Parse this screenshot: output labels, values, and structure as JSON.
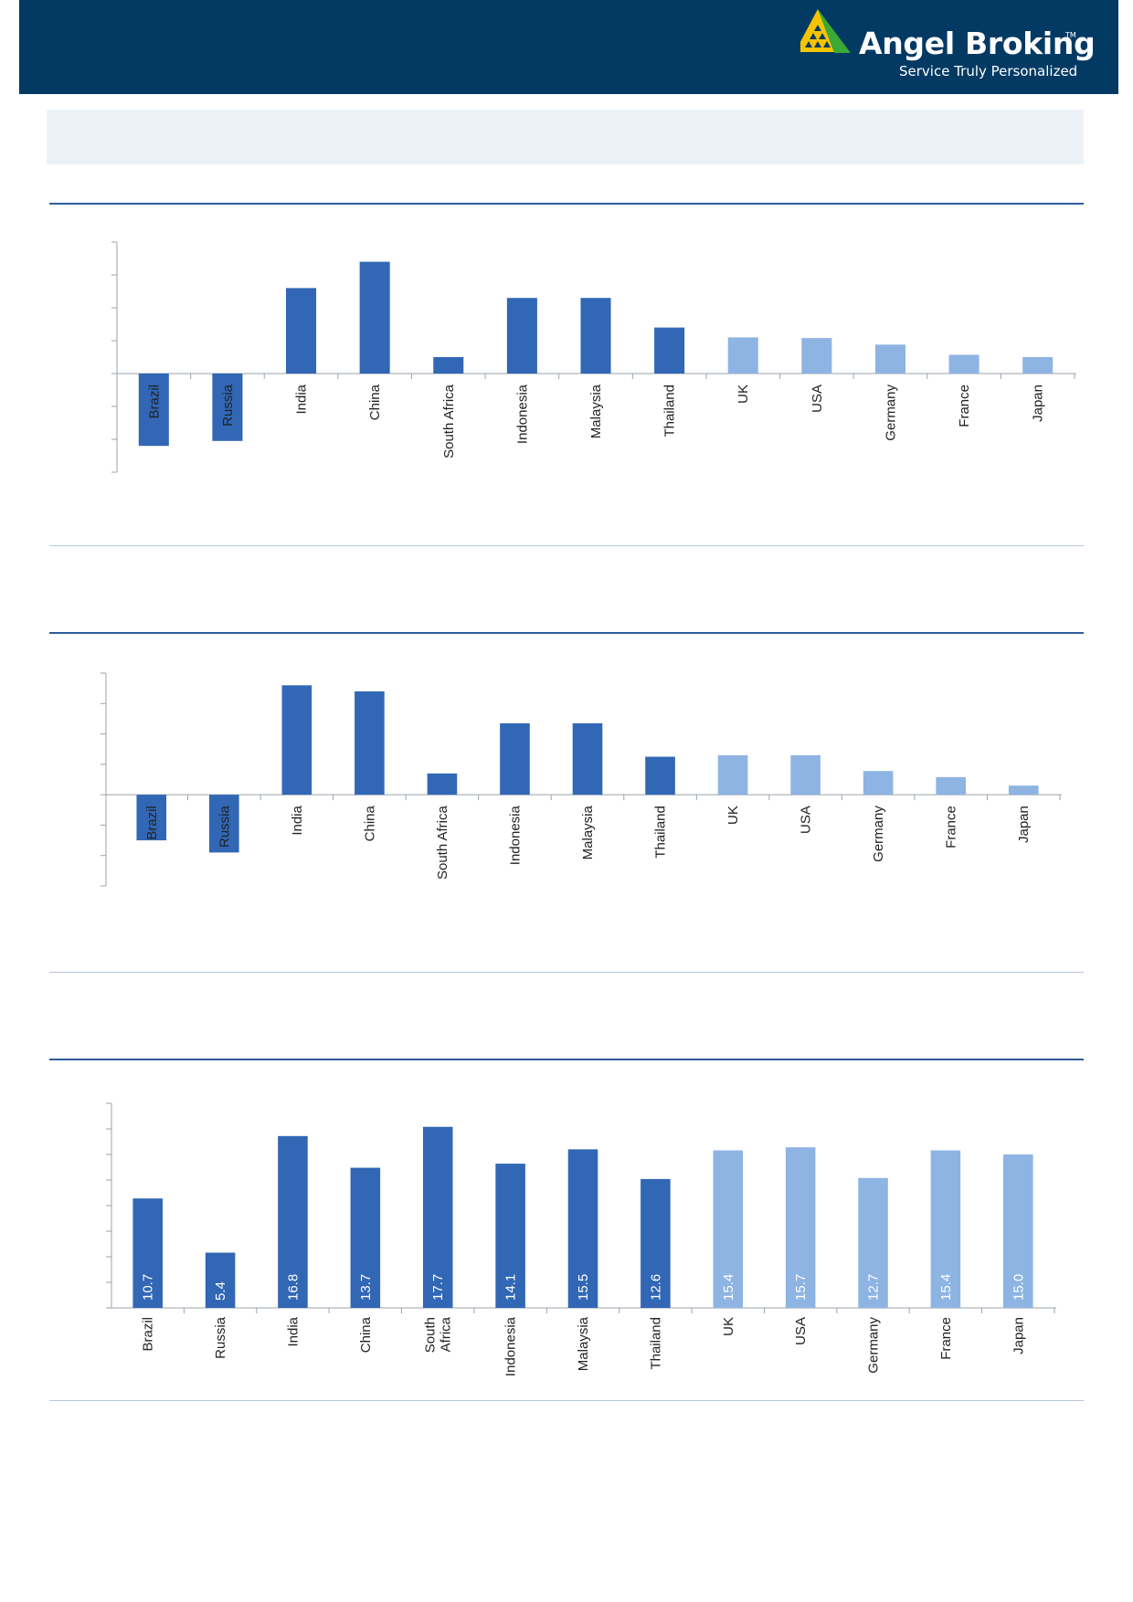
{
  "brand": {
    "name": "Angel Broking",
    "trademark": "TM",
    "tagline": "Service Truly Personalized",
    "logo_colors": [
      "#f5c400",
      "#3aa935"
    ]
  },
  "colors": {
    "header_bg": "#033a63",
    "emerging": "#3167b5",
    "developed": "#8eb4e3",
    "banner_bg": "#edf2f9"
  },
  "chart_data": [
    {
      "type": "bar",
      "categories": [
        "Brazil",
        "Russia",
        "India",
        "China",
        "South Africa",
        "Indonesia",
        "Malaysia",
        "Thailand",
        "UK",
        "USA",
        "Germany",
        "France",
        "Japan"
      ],
      "values": [
        -2.2,
        -2.05,
        2.6,
        3.4,
        0.5,
        2.3,
        2.3,
        1.4,
        1.1,
        1.08,
        0.88,
        0.57,
        0.5
      ],
      "ylim": [
        -3,
        4
      ],
      "color_groups": [
        "emerging",
        "emerging",
        "emerging",
        "emerging",
        "emerging",
        "emerging",
        "emerging",
        "emerging",
        "developed",
        "developed",
        "developed",
        "developed",
        "developed"
      ],
      "grid": false
    },
    {
      "type": "bar",
      "categories": [
        "Brazil",
        "Russia",
        "India",
        "China",
        "South Africa",
        "Indonesia",
        "Malaysia",
        "Thailand",
        "UK",
        "USA",
        "Germany",
        "France",
        "Japan"
      ],
      "values": [
        -1.5,
        -1.9,
        3.6,
        3.4,
        0.7,
        2.35,
        2.35,
        1.25,
        1.3,
        1.3,
        0.78,
        0.58,
        0.3
      ],
      "ylim": [
        -3,
        4
      ],
      "color_groups": [
        "emerging",
        "emerging",
        "emerging",
        "emerging",
        "emerging",
        "emerging",
        "emerging",
        "emerging",
        "developed",
        "developed",
        "developed",
        "developed",
        "developed"
      ],
      "grid": false
    },
    {
      "type": "bar",
      "categories": [
        "Brazil",
        "Russia",
        "India",
        "China",
        "South Africa",
        "Indonesia",
        "Malaysia",
        "Thailand",
        "UK",
        "USA",
        "Germany",
        "France",
        "Japan"
      ],
      "category_labels": [
        [
          "Brazil"
        ],
        [
          "Russia"
        ],
        [
          "India"
        ],
        [
          "China"
        ],
        [
          "South",
          "Africa"
        ],
        [
          "Indonesia"
        ],
        [
          "Malaysia"
        ],
        [
          "Thailand"
        ],
        [
          "UK"
        ],
        [
          "USA"
        ],
        [
          "Germany"
        ],
        [
          "France"
        ],
        [
          "Japan"
        ]
      ],
      "values": [
        10.7,
        5.4,
        16.8,
        13.7,
        17.7,
        14.1,
        15.5,
        12.6,
        15.4,
        15.7,
        12.7,
        15.4,
        15.0
      ],
      "data_labels": [
        "10.7",
        "5.4",
        "16.8",
        "13.7",
        "17.7",
        "14.1",
        "15.5",
        "12.6",
        "15.4",
        "15.7",
        "12.7",
        "15.4",
        "15.0"
      ],
      "ylim": [
        0,
        20
      ],
      "color_groups": [
        "emerging",
        "emerging",
        "emerging",
        "emerging",
        "emerging",
        "emerging",
        "emerging",
        "emerging",
        "developed",
        "developed",
        "developed",
        "developed",
        "developed"
      ],
      "grid": false
    }
  ]
}
